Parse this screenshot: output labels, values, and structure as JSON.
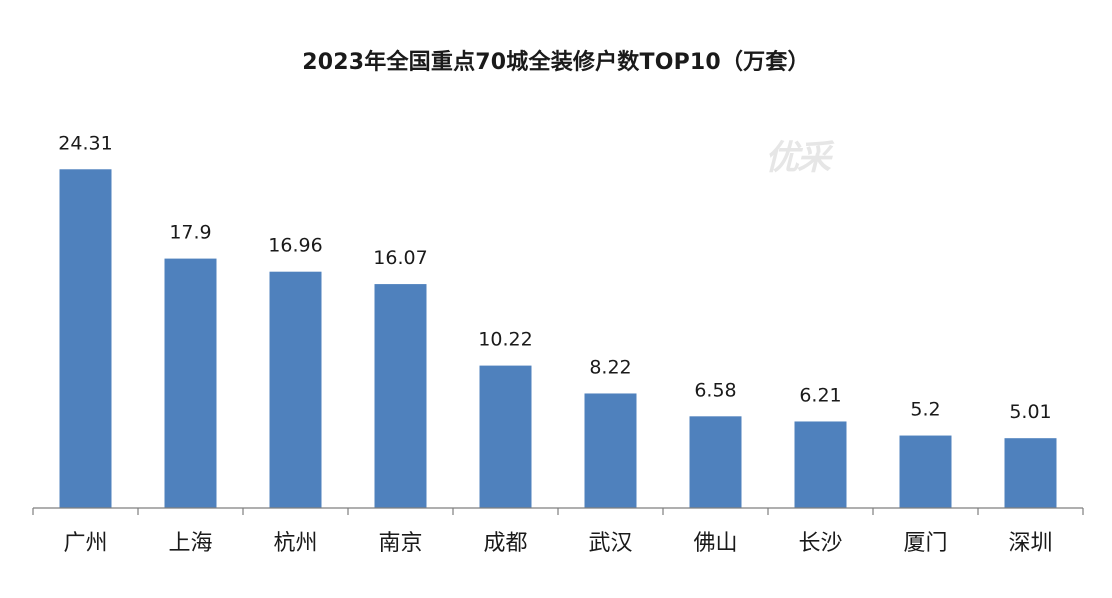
{
  "chart_data": {
    "type": "bar",
    "title": "2023年全国重点70城全装修户数TOP10（万套）",
    "categories": [
      "广州",
      "上海",
      "杭州",
      "南京",
      "成都",
      "武汉",
      "佛山",
      "长沙",
      "厦门",
      "深圳"
    ],
    "values": [
      24.31,
      17.9,
      16.96,
      16.07,
      10.22,
      8.22,
      6.58,
      6.21,
      5.2,
      5.01
    ],
    "data_labels": [
      "24.31",
      "17.9",
      "16.96",
      "16.07",
      "10.22",
      "8.22",
      "6.58",
      "6.21",
      "5.2",
      "5.01"
    ],
    "xlabel": "",
    "ylabel": "",
    "ylim": [
      0,
      30
    ],
    "grid": false,
    "legend": "none",
    "colors": {
      "bar": "#4f81bd",
      "axis": "#7f7f7f"
    }
  },
  "watermark": "优采"
}
